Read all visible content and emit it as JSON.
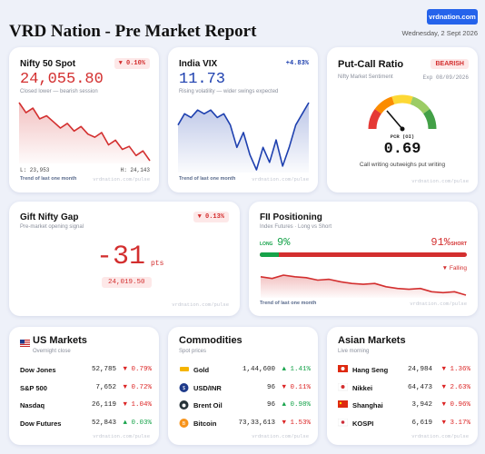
{
  "header": {
    "title": "VRD Nation - Pre Market Report",
    "link": "vrdnation.com",
    "date": "Wednesday, 2 Sept 2026"
  },
  "nifty": {
    "title": "Nifty 50 Spot",
    "change": "▼ 0.10%",
    "value": "24,055.80",
    "note": "Closed lower — bearish session",
    "low": "L: 23,953",
    "high": "H: 24,143",
    "trend": [
      24143,
      24110,
      24125,
      24090,
      24100,
      24080,
      24060,
      24075,
      24050,
      24065,
      24040,
      24030,
      24045,
      24005,
      24020,
      23990,
      24000,
      23970,
      23985,
      23953
    ],
    "caption": "Trend of last one month",
    "source": "vrdnation.com/pulse"
  },
  "vix": {
    "title": "India VIX",
    "change": "+4.83%",
    "value": "11.73",
    "note": "Rising volatility — wider swings expected",
    "trend": [
      11.3,
      11.45,
      11.4,
      11.5,
      11.45,
      11.5,
      11.4,
      11.45,
      11.3,
      11.0,
      11.2,
      10.9,
      10.7,
      11.0,
      10.8,
      11.1,
      10.75,
      11.0,
      11.3,
      11.45,
      11.6
    ],
    "caption": "Trend of last one month",
    "source": "vrdnation.com/pulse"
  },
  "pcr": {
    "title": "Put-Call Ratio",
    "badge": "BEARISH",
    "subtitle": "Nifty Market Sentiment",
    "expiry": "Exp 08/09/2026",
    "label": "PCR (OI)",
    "value": "0.69",
    "note": "Call writing outweighs put writing",
    "source": "vrdnation.com/pulse"
  },
  "gift": {
    "title": "Gift Nifty Gap",
    "change": "▼ 0.13%",
    "subtitle": "Pre-market opening signal",
    "gap": "-31",
    "unit": "pts",
    "level": "24,019.50",
    "source": "vrdnation.com/pulse"
  },
  "fii": {
    "title": "FII Positioning",
    "subtitle": "Index Futures · Long vs Short",
    "long_label": "LONG",
    "long": "9%",
    "short": "91%",
    "short_label": "SHORT",
    "direction": "▼ Falling",
    "trend": [
      20,
      19,
      21,
      20,
      19.5,
      18,
      18.5,
      17,
      16,
      15.5,
      16,
      14,
      13,
      12.5,
      13,
      11,
      10.5,
      11,
      9
    ],
    "caption": "Trend of last one month",
    "source": "vrdnation.com/pulse"
  },
  "us": {
    "title": "US Markets",
    "subtitle": "Overnight close",
    "rows": [
      {
        "name": "Dow Jones",
        "price": "52,785",
        "change": "▼ 0.79%"
      },
      {
        "name": "S&P 500",
        "price": "7,652",
        "change": "▼ 0.72%"
      },
      {
        "name": "Nasdaq",
        "price": "26,119",
        "change": "▼ 1.04%"
      },
      {
        "name": "Dow Futures",
        "price": "52,843",
        "change": "▲ 0.03%"
      }
    ],
    "source": "vrdnation.com/pulse"
  },
  "commodities": {
    "title": "Commodities",
    "subtitle": "Spot prices",
    "rows": [
      {
        "name": "Gold",
        "price": "1,44,600",
        "change": "▲ 1.41%"
      },
      {
        "name": "USD/INR",
        "price": "96",
        "change": "▼ 0.11%"
      },
      {
        "name": "Brent Oil",
        "price": "96",
        "change": "▲ 0.98%"
      },
      {
        "name": "Bitcoin",
        "price": "73,33,613",
        "change": "▼ 1.53%"
      }
    ],
    "source": "vrdnation.com/pulse"
  },
  "asia": {
    "title": "Asian Markets",
    "subtitle": "Live morning",
    "rows": [
      {
        "name": "Hang Seng",
        "price": "24,984",
        "change": "▼ 1.36%"
      },
      {
        "name": "Nikkei",
        "price": "64,473",
        "change": "▼ 2.63%"
      },
      {
        "name": "Shanghai",
        "price": "3,942",
        "change": "▼ 0.96%"
      },
      {
        "name": "KOSPI",
        "price": "6,619",
        "change": "▼ 3.17%"
      }
    ],
    "source": "vrdnation.com/pulse"
  }
}
